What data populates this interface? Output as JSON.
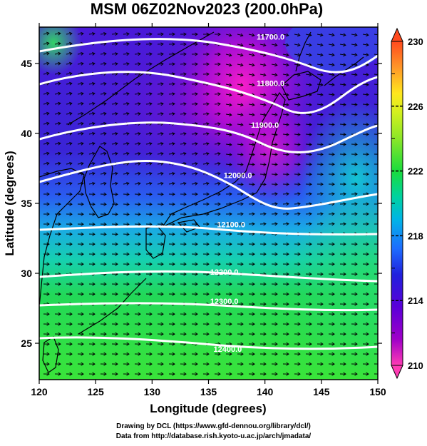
{
  "title": "MSM 06Z02Nov2023 (200.0hPa)",
  "chart_data": {
    "type": "map",
    "xlabel": "Longitude (degrees)",
    "ylabel": "Latitude  (degrees)",
    "xlim": [
      120,
      150
    ],
    "ylim": [
      22.4,
      47.6
    ],
    "x_ticks": [
      120,
      125,
      130,
      135,
      140,
      145,
      150
    ],
    "y_ticks": [
      25,
      30,
      35,
      40,
      45
    ],
    "shading_variable_range": [
      210,
      230
    ],
    "colorbar": {
      "min": 210,
      "max": 230,
      "labeled_ticks": [
        210,
        214,
        218,
        222,
        226,
        230
      ],
      "colors": [
        "#ff3cb4",
        "#a000c8",
        "#6a00d8",
        "#2b1adf",
        "#1e60ff",
        "#00b4e6",
        "#00d2a0",
        "#19dc3c",
        "#6ee628",
        "#b4f01e",
        "#e6f01e",
        "#ffd21e",
        "#ff9628",
        "#ff5a1e"
      ]
    },
    "contour_labels": [
      {
        "text": "11700.0",
        "lon": 140.5,
        "lat": 46.7
      },
      {
        "text": "11800.0",
        "lon": 140.5,
        "lat": 43.4
      },
      {
        "text": "11900.0",
        "lon": 140.0,
        "lat": 40.4
      },
      {
        "text": "12000.0",
        "lon": 137.6,
        "lat": 36.8
      },
      {
        "text": "12100.0",
        "lon": 137.0,
        "lat": 33.3
      },
      {
        "text": "12200.0",
        "lon": 136.4,
        "lat": 29.9
      },
      {
        "text": "12300.0",
        "lon": 136.4,
        "lat": 27.8
      },
      {
        "text": "12400.0",
        "lon": 136.7,
        "lat": 24.4
      }
    ]
  },
  "credits": {
    "line1": "Drawing by DCL (https://www.gfd-dennou.org/library/dcl/)",
    "line2": "Data from http://database.rish.kyoto-u.ac.jp/arch/jmadata/"
  }
}
